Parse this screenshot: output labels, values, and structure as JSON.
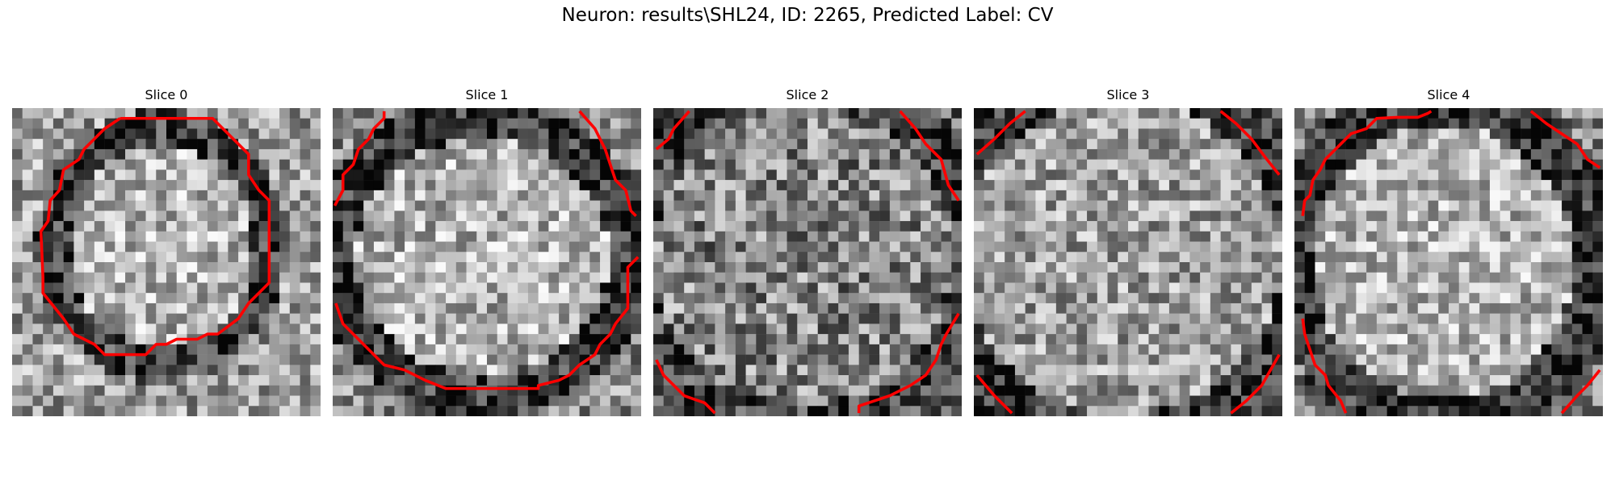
{
  "figure": {
    "title": "Neuron: results\\SHL24, ID: 2265, Predicted Label: CV",
    "contour_color": "#ff0000"
  },
  "panels": [
    {
      "title": "Slice 0"
    },
    {
      "title": "Slice 1"
    },
    {
      "title": "Slice 2"
    },
    {
      "title": "Slice 3"
    },
    {
      "title": "Slice 4"
    }
  ]
}
